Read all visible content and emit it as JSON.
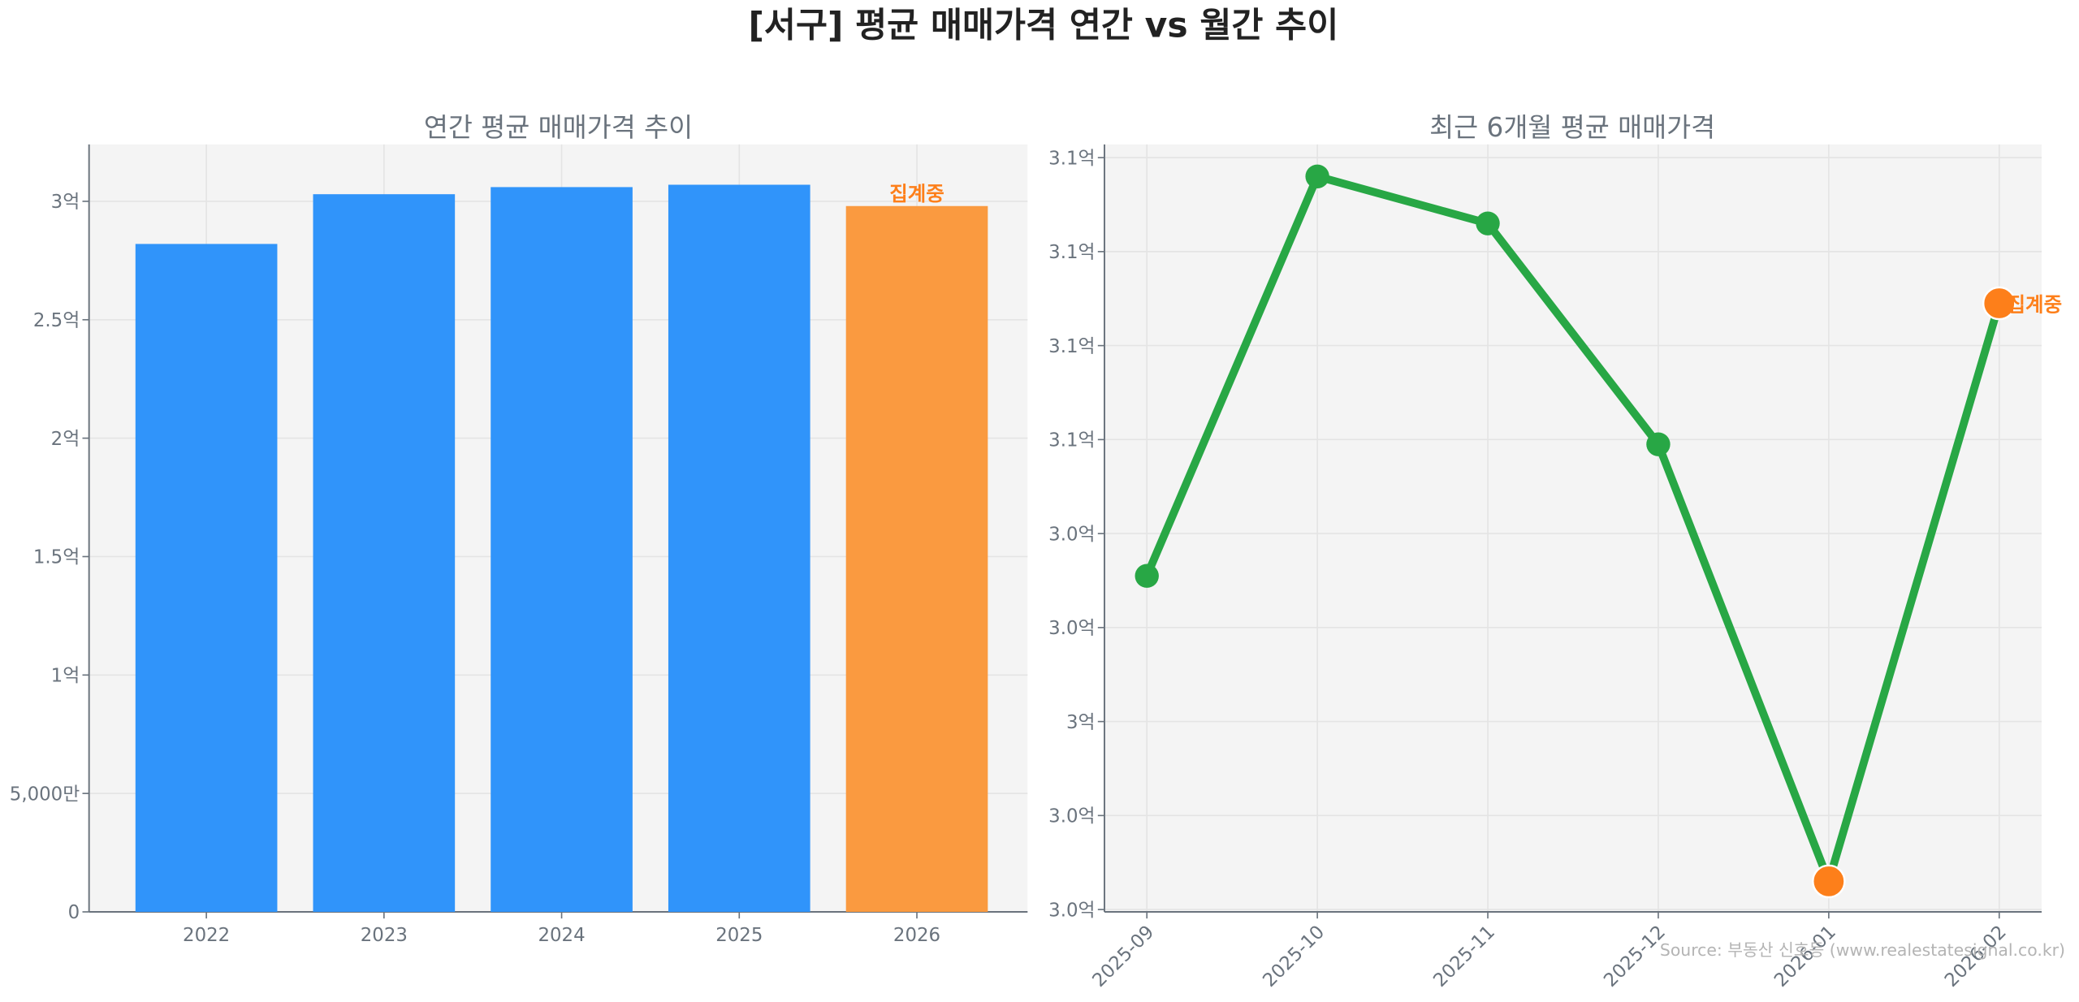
{
  "title": "[서구] 평균 매매가격 연간 vs 월간 추이",
  "source": "Source: 부동산 신호등 (www.realestatesignal.co.kr)",
  "colors": {
    "bar": "#3094fa",
    "bar_partial": "#fa9a40",
    "line": "#28a745",
    "point_partial": "#fd7f1a",
    "label_partial": "#fd7f1a",
    "plot_bg": "#f4f4f4",
    "grid": "#e4e4e4",
    "axis_text": "#6a737d"
  },
  "chart_data": [
    {
      "type": "bar",
      "title": "연간 평균 매매가격 추이",
      "unit": "억",
      "categories": [
        "2022",
        "2023",
        "2024",
        "2025",
        "2026"
      ],
      "values": [
        2.82,
        3.03,
        3.06,
        3.07,
        2.98
      ],
      "partial": [
        false,
        false,
        false,
        false,
        true
      ],
      "partial_label": "집계중",
      "ylim": [
        0,
        3.24
      ],
      "yticks": [
        0,
        0.5,
        1,
        1.5,
        2,
        2.5,
        3
      ],
      "ytick_labels": [
        "0",
        "5,000만",
        "1억",
        "1.5억",
        "2억",
        "2.5억",
        "3억"
      ],
      "grid": true
    },
    {
      "type": "line",
      "title": "최근 6개월 평균 매매가격",
      "unit": "억",
      "categories": [
        "2025-09",
        "2025-10",
        "2025-11",
        "2025-12",
        "2026-01",
        "2026-02"
      ],
      "values": [
        3.031,
        3.116,
        3.106,
        3.059,
        2.966,
        3.089
      ],
      "highlight": [
        false,
        false,
        false,
        false,
        true,
        true
      ],
      "partial_label": "집계중",
      "ylim": [
        2.9595,
        3.1228
      ],
      "yticks": [
        2.96,
        2.98,
        3.0,
        3.02,
        3.04,
        3.06,
        3.08,
        3.1,
        3.12
      ],
      "ytick_labels": [
        "3.0억",
        "3.0억",
        "3억",
        "3.0억",
        "3.0억",
        "3.1억",
        "3.1억",
        "3.1억",
        "3.1억"
      ],
      "grid": true
    }
  ]
}
